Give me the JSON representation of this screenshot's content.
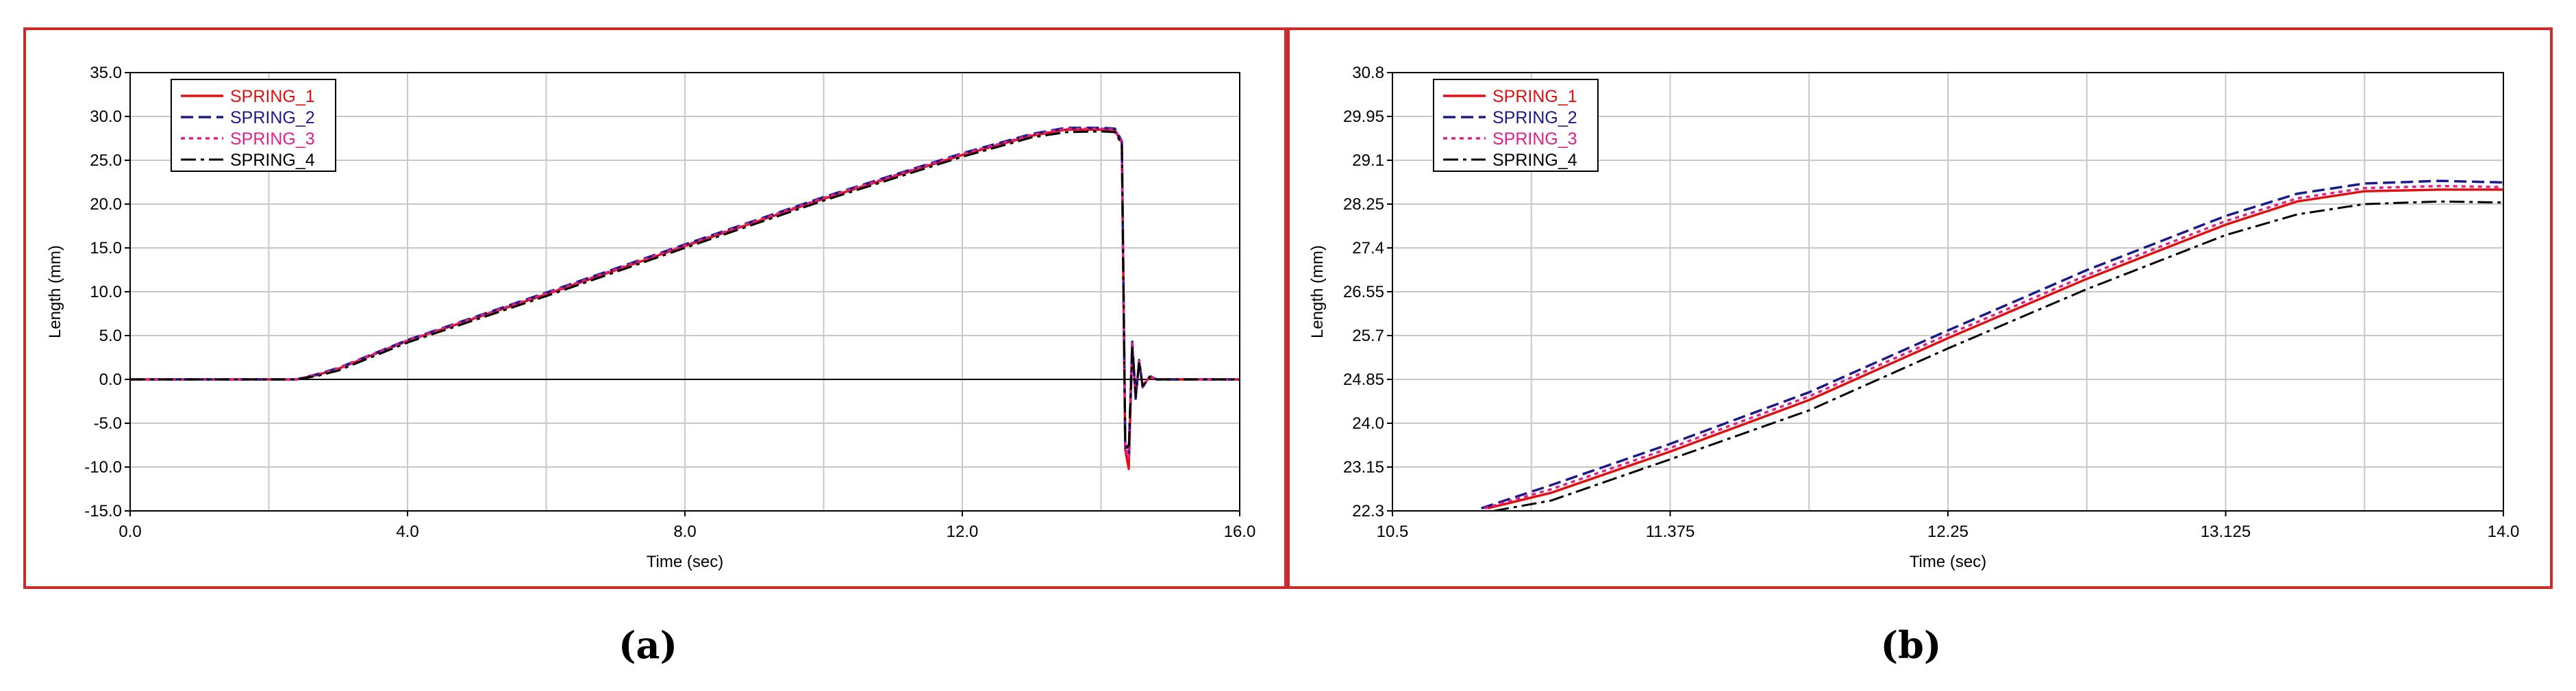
{
  "captions": {
    "a": "(a)",
    "b": "(b)"
  },
  "colors": {
    "SPRING_1": "#e01010",
    "SPRING_2": "#1a1a8c",
    "SPRING_3": "#e0208a",
    "SPRING_4": "#000000",
    "frame": "#cc2b2b",
    "grid": "#c8c8c8"
  },
  "chart_data": [
    {
      "type": "line",
      "panel": "a",
      "xlabel": "Time (sec)",
      "ylabel": "Length (mm)",
      "xlim": [
        0.0,
        16.0
      ],
      "ylim": [
        -15.0,
        35.0
      ],
      "x_ticks": [
        0,
        4,
        8,
        12,
        16
      ],
      "x_tick_labels": [
        "0.0",
        "4.0",
        "8.0",
        "12.0",
        "16.0"
      ],
      "x_grid": [
        0,
        2,
        4,
        6,
        8,
        10,
        12,
        14,
        16
      ],
      "y_ticks": [
        -15,
        -10,
        -5,
        0,
        5,
        10,
        15,
        20,
        25,
        30,
        35
      ],
      "y_tick_labels": [
        "-15.0",
        "-10.0",
        "-5.0",
        "0.0",
        "5.0",
        "10.0",
        "15.0",
        "20.0",
        "25.0",
        "30.0",
        "35.0"
      ],
      "grid": true,
      "legend_position": "top-left",
      "series": [
        {
          "name": "SPRING_1",
          "x": [
            0,
            2.4,
            2.7,
            3.0,
            4.0,
            6.0,
            8.0,
            10.0,
            12.0,
            13.0,
            13.5,
            14.0,
            14.2,
            14.3,
            14.35,
            14.4,
            14.45,
            14.5,
            14.55,
            14.6,
            14.7,
            14.8,
            15.0,
            16.0
          ],
          "y": [
            0,
            0,
            0.5,
            1.2,
            4.4,
            9.7,
            15.2,
            20.6,
            25.6,
            27.8,
            28.5,
            28.5,
            28.4,
            27.0,
            -8.0,
            -10.2,
            4.0,
            -2.0,
            2.0,
            -0.8,
            0.3,
            0,
            0,
            0
          ]
        },
        {
          "name": "SPRING_2",
          "x": [
            0,
            2.4,
            2.7,
            3.0,
            4.0,
            6.0,
            8.0,
            10.0,
            12.0,
            13.0,
            13.5,
            14.0,
            14.2,
            14.3,
            14.35,
            14.4,
            14.45,
            14.5,
            14.55,
            14.6,
            14.7,
            14.8,
            15.0,
            16.0
          ],
          "y": [
            0,
            0,
            0.6,
            1.3,
            4.5,
            9.9,
            15.4,
            20.8,
            25.8,
            28.0,
            28.7,
            28.7,
            28.6,
            27.2,
            -7.5,
            -8.5,
            4.3,
            -2.2,
            2.2,
            -0.9,
            0.4,
            0,
            0,
            0
          ]
        },
        {
          "name": "SPRING_3",
          "x": [
            0,
            2.4,
            2.7,
            3.0,
            4.0,
            6.0,
            8.0,
            10.0,
            12.0,
            13.0,
            13.5,
            14.0,
            14.2,
            14.3,
            14.35,
            14.4,
            14.45,
            14.5,
            14.55,
            14.6,
            14.7,
            14.8,
            15.0,
            16.0
          ],
          "y": [
            0,
            0,
            0.55,
            1.25,
            4.45,
            9.8,
            15.3,
            20.7,
            25.7,
            27.9,
            28.6,
            28.6,
            28.5,
            27.1,
            -7.8,
            -9.0,
            4.1,
            -2.1,
            2.1,
            -0.85,
            0.35,
            0,
            0,
            0
          ]
        },
        {
          "name": "SPRING_4",
          "x": [
            0,
            2.4,
            2.7,
            3.0,
            4.0,
            6.0,
            8.0,
            10.0,
            12.0,
            13.0,
            13.5,
            14.0,
            14.2,
            14.3,
            14.35,
            14.4,
            14.45,
            14.5,
            14.55,
            14.6,
            14.7,
            14.8,
            15.0,
            16.0
          ],
          "y": [
            0,
            0,
            0.4,
            1.0,
            4.2,
            9.5,
            15.0,
            20.4,
            25.4,
            27.6,
            28.2,
            28.3,
            28.2,
            26.8,
            -7.0,
            -8.0,
            3.8,
            -1.9,
            1.9,
            -0.75,
            0.3,
            0,
            0,
            0
          ]
        }
      ]
    },
    {
      "type": "line",
      "panel": "b",
      "xlabel": "Time (sec)",
      "ylabel": "Length (mm)",
      "xlim": [
        10.5,
        14.0
      ],
      "ylim": [
        22.3,
        30.8
      ],
      "x_ticks": [
        10.5,
        11.375,
        12.25,
        13.125,
        14.0
      ],
      "x_tick_labels": [
        "10.5",
        "11.375",
        "12.25",
        "13.125",
        "14.0"
      ],
      "x_grid": [
        10.5,
        10.9375,
        11.375,
        11.8125,
        12.25,
        12.6875,
        13.125,
        13.5625,
        14.0
      ],
      "y_ticks": [
        22.3,
        23.15,
        24.0,
        24.85,
        25.7,
        26.55,
        27.4,
        28.25,
        29.1,
        29.95,
        30.8
      ],
      "y_tick_labels": [
        "22.3",
        "23.15",
        "24.0",
        "24.85",
        "25.7",
        "26.55",
        "27.4",
        "28.25",
        "29.1",
        "29.95",
        "30.8"
      ],
      "grid": true,
      "legend_position": "top-left",
      "series": [
        {
          "name": "SPRING_1",
          "x": [
            10.8,
            11.0,
            11.375,
            11.8125,
            12.25,
            12.6875,
            13.125,
            13.35,
            13.5625,
            13.8,
            14.0
          ],
          "y": [
            22.35,
            22.65,
            23.45,
            24.45,
            25.65,
            26.8,
            27.85,
            28.3,
            28.5,
            28.53,
            28.53
          ]
        },
        {
          "name": "SPRING_2",
          "x": [
            10.78,
            11.0,
            11.375,
            11.8125,
            12.25,
            12.6875,
            13.125,
            13.35,
            13.5625,
            13.8,
            14.0
          ],
          "y": [
            22.35,
            22.8,
            23.6,
            24.6,
            25.8,
            26.97,
            28.02,
            28.45,
            28.65,
            28.7,
            28.67
          ]
        },
        {
          "name": "SPRING_3",
          "x": [
            10.79,
            11.0,
            11.375,
            11.8125,
            12.25,
            12.6875,
            13.125,
            13.35,
            13.5625,
            13.8,
            14.0
          ],
          "y": [
            22.35,
            22.72,
            23.52,
            24.52,
            25.72,
            26.87,
            27.92,
            28.36,
            28.56,
            28.6,
            28.58
          ]
        },
        {
          "name": "SPRING_4",
          "x": [
            10.82,
            11.0,
            11.375,
            11.8125,
            12.25,
            12.6875,
            13.125,
            13.35,
            13.5625,
            13.8,
            14.0
          ],
          "y": [
            22.3,
            22.5,
            23.3,
            24.25,
            25.45,
            26.6,
            27.65,
            28.05,
            28.25,
            28.3,
            28.28
          ]
        }
      ]
    }
  ]
}
